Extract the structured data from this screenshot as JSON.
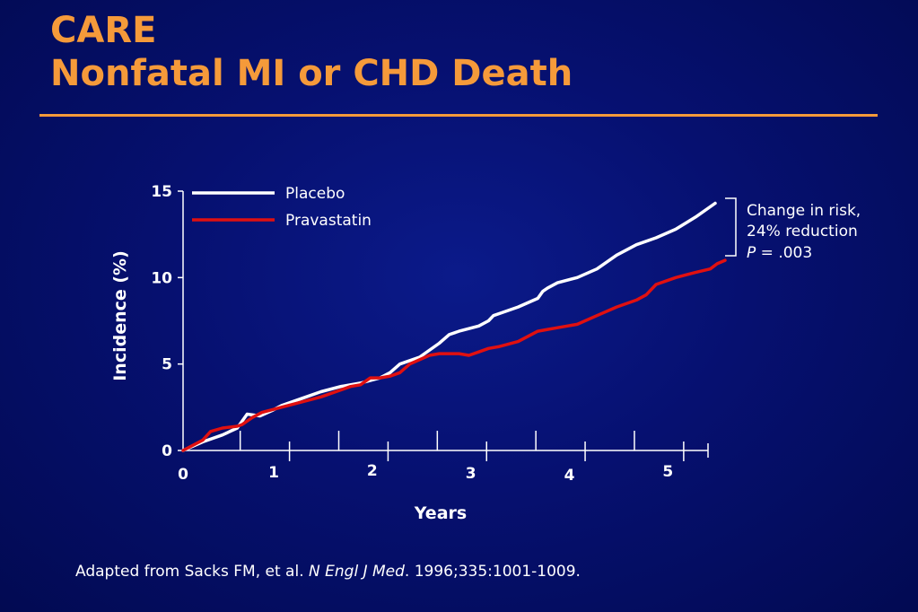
{
  "slide": {
    "title_line1": "CARE",
    "title_line2": "Nonfatal MI or CHD Death",
    "accent_color": "#f59a3a"
  },
  "chart_data": {
    "type": "line",
    "xlabel": "Years",
    "ylabel": "Incidence (%)",
    "xlim": [
      0,
      5.5
    ],
    "ylim": [
      0,
      15
    ],
    "x_ticks": [
      "0",
      "1",
      "2",
      "3",
      "4",
      "5"
    ],
    "y_ticks": [
      "0",
      "5",
      "10",
      "15"
    ],
    "grid": false,
    "legend_position": "top-left",
    "series": [
      {
        "name": "Placebo",
        "color": "#ffffff",
        "x": [
          0,
          0.2,
          0.4,
          0.55,
          0.6,
          0.65,
          0.78,
          0.9,
          1.0,
          1.2,
          1.4,
          1.6,
          1.8,
          2.0,
          2.1,
          2.2,
          2.4,
          2.6,
          2.7,
          2.8,
          3.0,
          3.1,
          3.15,
          3.25,
          3.4,
          3.6,
          3.65,
          3.7,
          3.8,
          4.0,
          4.2,
          4.4,
          4.6,
          4.8,
          5.0,
          5.2,
          5.4
        ],
        "y": [
          0,
          0.5,
          0.9,
          1.3,
          1.7,
          2.1,
          2.0,
          2.3,
          2.6,
          3.0,
          3.4,
          3.7,
          3.9,
          4.2,
          4.5,
          5.0,
          5.4,
          6.2,
          6.7,
          6.9,
          7.2,
          7.5,
          7.8,
          8.0,
          8.3,
          8.8,
          9.2,
          9.4,
          9.7,
          10.0,
          10.5,
          11.3,
          11.9,
          12.3,
          12.8,
          13.5,
          14.3
        ]
      },
      {
        "name": "Pravastatin",
        "color": "#e01010",
        "x": [
          0,
          0.2,
          0.28,
          0.4,
          0.55,
          0.6,
          0.7,
          0.8,
          1.0,
          1.2,
          1.4,
          1.6,
          1.7,
          1.8,
          1.9,
          2.0,
          2.1,
          2.2,
          2.3,
          2.5,
          2.6,
          2.7,
          2.8,
          2.9,
          3.0,
          3.1,
          3.2,
          3.4,
          3.6,
          3.7,
          3.8,
          4.0,
          4.2,
          4.4,
          4.6,
          4.7,
          4.8,
          5.0,
          5.2,
          5.35,
          5.42,
          5.5
        ],
        "y": [
          0,
          0.6,
          1.1,
          1.3,
          1.4,
          1.5,
          1.9,
          2.2,
          2.5,
          2.8,
          3.1,
          3.5,
          3.7,
          3.8,
          4.2,
          4.2,
          4.3,
          4.5,
          5.0,
          5.5,
          5.6,
          5.6,
          5.6,
          5.5,
          5.7,
          5.9,
          6.0,
          6.3,
          6.9,
          7.0,
          7.1,
          7.3,
          7.8,
          8.3,
          8.7,
          9.0,
          9.6,
          10.0,
          10.3,
          10.5,
          10.8,
          11.0
        ]
      }
    ],
    "annotation": {
      "line1": "Change in risk,",
      "line2": "24% reduction",
      "line3_italic": "P",
      "line3_rest": " = .003"
    }
  },
  "footer": {
    "prefix": "Adapted from Sacks FM, et al. ",
    "journal": "N Engl J Med",
    "suffix": ". 1996;335:1001-1009."
  }
}
